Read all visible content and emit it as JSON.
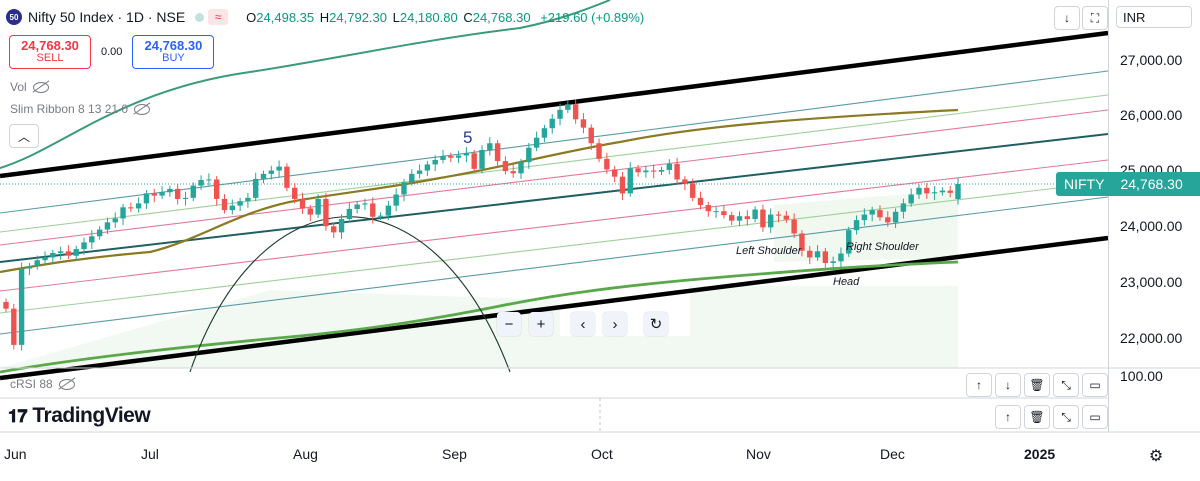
{
  "header": {
    "symbol_badge": "50",
    "title": "Nifty 50 Index · 1D · NSE",
    "ohlc": {
      "o_key": "O",
      "o_val": "24,498.35",
      "h_key": "H",
      "h_val": "24,792.30",
      "l_key": "L",
      "l_val": "24,180.80",
      "c_key": "C",
      "c_val": "24,768.30",
      "change": "+219.60 (+0.89%)"
    }
  },
  "trade": {
    "sell_price": "24,768.30",
    "sell_label": "SELL",
    "spread": "0.00",
    "buy_price": "24,768.30",
    "buy_label": "BUY"
  },
  "indicators": {
    "vol": "Vol",
    "ribbon": "Slim Ribbon 8 13 21 0",
    "crsi": "cRSI 88"
  },
  "toolbar": {
    "currency": "INR",
    "pane_up": "↑",
    "pane_down": "↓",
    "delete": "🗑",
    "maximize": "⤢"
  },
  "price_scale": {
    "ticks": [
      "27,000.00",
      "26,000.00",
      "25,000.00",
      "24,000.00",
      "23,000.00",
      "22,000.00"
    ],
    "crsi_tick": "100.00",
    "last_name": "NIFTY",
    "last_value": "24,768.30"
  },
  "time_scale": {
    "labels": [
      "Jun",
      "Jul",
      "Aug",
      "Sep",
      "Oct",
      "Nov",
      "Dec",
      "2025"
    ]
  },
  "annotations": {
    "wave_5": "5",
    "left_shoulder": "Left Shoulder",
    "right_shoulder": "Right Shoulder",
    "head": "Head"
  },
  "nav": {
    "zoom_out": "−",
    "zoom_in": "+",
    "scroll_left": "‹",
    "scroll_right": "›",
    "reset": "↻"
  },
  "branding": {
    "logo": "TradingView"
  },
  "colors": {
    "up": "#26a69a",
    "down": "#ef5350",
    "last_price": "#26a69a",
    "channel": "#000000"
  },
  "chart_data": {
    "type": "candlestick",
    "price_axis": [
      "27,000.00",
      "26,000.00",
      "25,000.00",
      "24,000.00",
      "23,000.00",
      "22,000.00"
    ],
    "ylim": [
      21600,
      27500
    ],
    "last_price": 24768.3,
    "ohlc_last": {
      "open": 24498.35,
      "high": 24792.3,
      "low": 24180.8,
      "close": 24768.3
    },
    "closes": [
      22530,
      21880,
      23250,
      23290,
      23400,
      23450,
      23530,
      23560,
      23480,
      23600,
      23720,
      23830,
      23950,
      24080,
      24150,
      24350,
      24330,
      24420,
      24600,
      24560,
      24620,
      24680,
      24500,
      24520,
      24740,
      24840,
      24850,
      24500,
      24300,
      24380,
      24460,
      24520,
      24860,
      24950,
      25010,
      25080,
      24700,
      24500,
      24330,
      24220,
      24500,
      24010,
      23900,
      24140,
      24320,
      24400,
      24420,
      24180,
      24200,
      24380,
      24580,
      24800,
      24950,
      25010,
      25120,
      25200,
      25270,
      25240,
      25280,
      25320,
      25040,
      25380,
      25500,
      25180,
      25000,
      24960,
      25160,
      25420,
      25600,
      25770,
      25940,
      26100,
      26200,
      25930,
      25780,
      25500,
      25220,
      25030,
      24900,
      24600,
      25050,
      24980,
      25010,
      24990,
      25020,
      25130,
      24850,
      24780,
      24520,
      24390,
      24280,
      24280,
      24210,
      24110,
      24190,
      24140,
      24310,
      23990,
      24220,
      24200,
      24130,
      23880,
      23570,
      23450,
      23560,
      23350,
      23380,
      23520,
      23940,
      24120,
      24220,
      24300,
      24170,
      24080,
      24270,
      24420,
      24580,
      24700,
      24600,
      24620,
      24650,
      24610,
      24768.3
    ],
    "annotations": [
      "5",
      "Left Shoulder",
      "Right Shoulder",
      "Head"
    ],
    "x_labels": [
      "Jun",
      "Jul",
      "Aug",
      "Sep",
      "Oct",
      "Nov",
      "Dec",
      "2025"
    ]
  }
}
